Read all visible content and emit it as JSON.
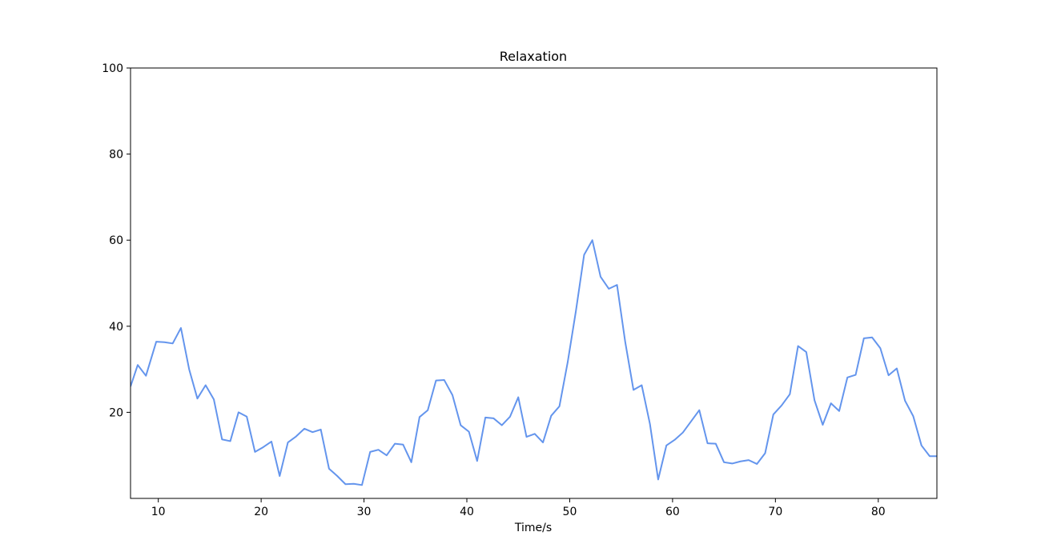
{
  "chart_data": {
    "type": "line",
    "title": "Relaxation",
    "xlabel": "Time/s",
    "ylabel": "",
    "xlim": [
      7.3,
      85.7
    ],
    "ylim": [
      0,
      100
    ],
    "xticks": [
      10,
      20,
      30,
      40,
      50,
      60,
      70,
      80
    ],
    "yticks": [
      20,
      40,
      60,
      80,
      100
    ],
    "grid": false,
    "line_color": "#6495ED",
    "series": [
      {
        "x": [
          7.3,
          8.0,
          8.8,
          9.8,
          10.6,
          11.4,
          12.2,
          13.0,
          13.8,
          14.6,
          15.4,
          16.2,
          17.0,
          17.8,
          18.6,
          19.4,
          20.2,
          21.0,
          21.8,
          22.6,
          23.4,
          24.2,
          25.0,
          25.8,
          26.6,
          27.4,
          28.2,
          29.0,
          29.8,
          30.6,
          31.4,
          32.2,
          33.0,
          33.8,
          34.6,
          35.4,
          36.2,
          37.0,
          37.8,
          38.6,
          39.4,
          40.2,
          41.0,
          41.8,
          42.6,
          43.4,
          44.2,
          45.0,
          45.8,
          46.6,
          47.4,
          48.2,
          49.0,
          49.8,
          50.6,
          51.4,
          52.2,
          53.0,
          53.8,
          54.6,
          55.4,
          56.2,
          57.0,
          57.8,
          58.6,
          59.4,
          60.2,
          61.0,
          61.8,
          62.6,
          63.4,
          64.2,
          65.0,
          65.8,
          66.6,
          67.4,
          68.2,
          69.0,
          69.8,
          70.6,
          71.4,
          72.2,
          73.0,
          73.8,
          74.6,
          75.4,
          76.2,
          77.0,
          77.8,
          78.6,
          79.4,
          80.2,
          81.0,
          81.8,
          82.6,
          83.4,
          84.2,
          85.0,
          85.7
        ],
        "y": [
          26.0,
          31.0,
          28.5,
          36.4,
          36.3,
          36.0,
          39.6,
          30.0,
          23.2,
          26.3,
          23.0,
          13.7,
          13.3,
          20.0,
          19.0,
          10.8,
          11.9,
          13.2,
          5.2,
          13.0,
          14.4,
          16.2,
          15.4,
          16.0,
          6.9,
          5.2,
          3.3,
          3.4,
          3.1,
          10.8,
          11.3,
          10.0,
          12.7,
          12.5,
          8.4,
          18.9,
          20.5,
          27.4,
          27.5,
          24.0,
          17.0,
          15.5,
          8.7,
          18.8,
          18.6,
          17.0,
          19.0,
          23.5,
          14.3,
          15.0,
          13.0,
          19.2,
          21.4,
          31.6,
          43.5,
          56.6,
          60.0,
          51.5,
          48.7,
          49.6,
          36.3,
          25.2,
          26.3,
          17.3,
          4.4,
          12.3,
          13.6,
          15.3,
          17.9,
          20.5,
          12.8,
          12.7,
          8.4,
          8.1,
          8.6,
          8.9,
          8.0,
          10.5,
          19.5,
          21.6,
          24.2,
          35.4,
          34.0,
          22.8,
          17.1,
          22.1,
          20.3,
          28.1,
          28.7,
          37.2,
          37.4,
          34.9,
          28.6,
          30.2,
          22.7,
          19.1,
          12.3,
          9.8,
          9.8
        ]
      }
    ]
  }
}
